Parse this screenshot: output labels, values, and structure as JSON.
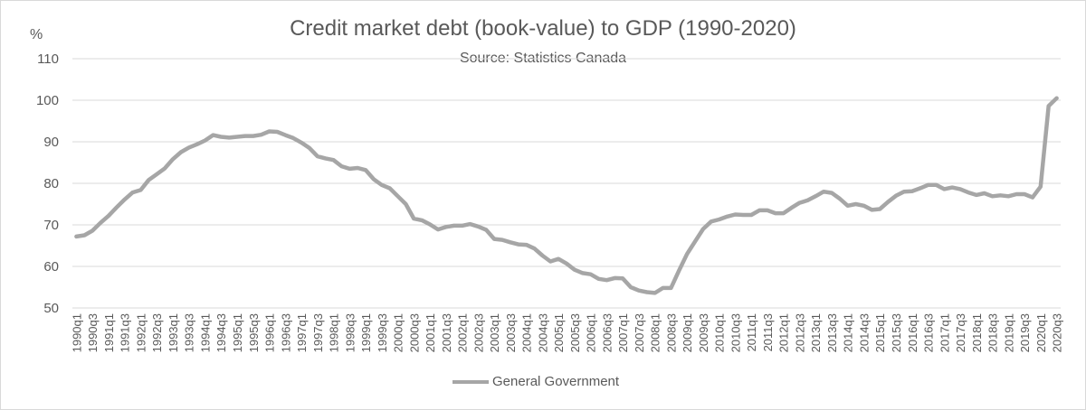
{
  "chart_data": {
    "type": "line",
    "title": "Credit market debt (book-value) to GDP (1990-2020)",
    "subtitle": "Source: Statistics Canada",
    "y_unit": "%",
    "ylim": [
      50,
      110
    ],
    "yticks": [
      50,
      60,
      70,
      80,
      90,
      100,
      110
    ],
    "grid": true,
    "legend_position": "bottom",
    "series": [
      {
        "name": "General Government",
        "color": "#a6a6a6",
        "values": [
          67.2,
          67.5,
          68.6,
          70.5,
          72.2,
          74.2,
          76.1,
          77.8,
          78.4,
          80.8,
          82.2,
          83.6,
          85.8,
          87.5,
          88.6,
          89.4,
          90.3,
          91.6,
          91.2,
          91.0,
          91.2,
          91.4,
          91.4,
          91.7,
          92.5,
          92.4,
          91.6,
          90.9,
          89.8,
          88.5,
          86.5,
          86.0,
          85.6,
          84.1,
          83.5,
          83.7,
          83.2,
          81.0,
          79.6,
          78.8,
          76.9,
          75.0,
          71.5,
          71.1,
          70.1,
          68.9,
          69.5,
          69.8,
          69.8,
          70.2,
          69.6,
          68.8,
          66.6,
          66.4,
          65.8,
          65.3,
          65.2,
          64.3,
          62.6,
          61.2,
          61.8,
          60.7,
          59.2,
          58.4,
          58.1,
          57.0,
          56.7,
          57.2,
          57.1,
          55.0,
          54.2,
          53.8,
          53.6,
          54.8,
          54.8,
          59.0,
          63.0,
          66.0,
          69.0,
          70.8,
          71.3,
          72.0,
          72.5,
          72.4,
          72.4,
          73.5,
          73.5,
          72.8,
          72.8,
          74.1,
          75.3,
          75.9,
          76.9,
          78.0,
          77.7,
          76.3,
          74.6,
          75.0,
          74.6,
          73.6,
          73.8,
          75.5,
          77.0,
          78.0,
          78.1,
          78.8,
          79.6,
          79.6,
          78.6,
          79.0,
          78.6,
          77.8,
          77.2,
          77.6,
          76.9,
          77.1,
          76.9,
          77.4,
          77.4,
          76.6,
          79.2,
          98.6,
          100.5
        ]
      }
    ],
    "categories": [
      "1990q1",
      "1990q2",
      "1990q3",
      "1990q4",
      "1991q1",
      "1991q2",
      "1991q3",
      "1991q4",
      "1992q1",
      "1992q2",
      "1992q3",
      "1992q4",
      "1993q1",
      "1993q2",
      "1993q3",
      "1993q4",
      "1994q1",
      "1994q2",
      "1994q3",
      "1994q4",
      "1995q1",
      "1995q2",
      "1995q3",
      "1995q4",
      "1996q1",
      "1996q2",
      "1996q3",
      "1996q4",
      "1997q1",
      "1997q2",
      "1997q3",
      "1997q4",
      "1998q1",
      "1998q2",
      "1998q3",
      "1998q4",
      "1999q1",
      "1999q2",
      "1999q3",
      "1999q4",
      "2000q1",
      "2000q2",
      "2000q3",
      "2000q4",
      "2001q1",
      "2001q2",
      "2001q3",
      "2001q4",
      "2002q1",
      "2002q2",
      "2002q3",
      "2002q4",
      "2003q1",
      "2003q2",
      "2003q3",
      "2003q4",
      "2004q1",
      "2004q2",
      "2004q3",
      "2004q4",
      "2005q1",
      "2005q2",
      "2005q3",
      "2005q4",
      "2006q1",
      "2006q2",
      "2006q3",
      "2006q4",
      "2007q1",
      "2007q2",
      "2007q3",
      "2007q4",
      "2008q1",
      "2008q2",
      "2008q3",
      "2008q4",
      "2009q1",
      "2009q2",
      "2009q3",
      "2009q4",
      "2010q1",
      "2010q2",
      "2010q3",
      "2010q4",
      "2011q1",
      "2011q2",
      "2011q3",
      "2011q4",
      "2012q1",
      "2012q2",
      "2012q3",
      "2012q4",
      "2013q1",
      "2013q2",
      "2013q3",
      "2013q4",
      "2014q1",
      "2014q2",
      "2014q3",
      "2014q4",
      "2015q1",
      "2015q2",
      "2015q3",
      "2015q4",
      "2016q1",
      "2016q2",
      "2016q3",
      "2016q4",
      "2017q1",
      "2017q2",
      "2017q3",
      "2017q4",
      "2018q1",
      "2018q2",
      "2018q3",
      "2018q4",
      "2019q1",
      "2019q2",
      "2019q3",
      "2019q4",
      "2020q1",
      "2020q2",
      "2020q3"
    ],
    "x_tick_labels": [
      "1990q1",
      "1990q3",
      "1991q1",
      "1991q3",
      "1992q1",
      "1992q3",
      "1993q1",
      "1993q3",
      "1994q1",
      "1994q3",
      "1995q1",
      "1995q3",
      "1996q1",
      "1996q3",
      "1997q1",
      "1997q3",
      "1998q1",
      "1998q3",
      "1999q1",
      "1999q3",
      "2000q1",
      "2000q3",
      "2001q1",
      "2001q3",
      "2002q1",
      "2002q3",
      "2003q1",
      "2003q3",
      "2004q1",
      "2004q3",
      "2005q1",
      "2005q3",
      "2006q1",
      "2006q3",
      "2007q1",
      "2007q3",
      "2008q1",
      "2008q3",
      "2009q1",
      "2009q3",
      "2010q1",
      "2010q3",
      "2011q1",
      "2011q3",
      "2012q1",
      "2012q3",
      "2013q1",
      "2013q3",
      "2014q1",
      "2014q3",
      "2015q1",
      "2015q3",
      "2016q1",
      "2016q3",
      "2017q1",
      "2017q3",
      "2018q1",
      "2018q3",
      "2019q1",
      "2019q3",
      "2020q1",
      "2020q3"
    ]
  },
  "colors": {
    "axis_text": "#595959",
    "gridline": "#d9d9d9",
    "line": "#a6a6a6"
  }
}
